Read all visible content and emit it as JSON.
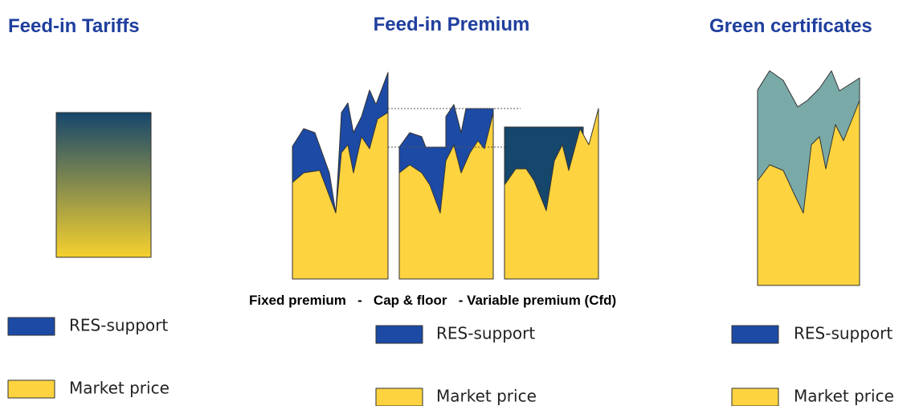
{
  "panels": [
    {
      "title": "Feed-in Tariffs",
      "legend": [
        {
          "label": "RES-support"
        },
        {
          "label": "Market price"
        }
      ]
    },
    {
      "title": "Feed-in Premium",
      "subtitle": "Fixed premium   -   Cap & floor   - Variable premium (Cfd)",
      "legend": [
        {
          "label": "RES-support"
        },
        {
          "label": "Market price"
        }
      ]
    },
    {
      "title": "Green certificates",
      "legend": [
        {
          "label": "RES-support"
        },
        {
          "label": "Market price"
        }
      ]
    }
  ]
}
